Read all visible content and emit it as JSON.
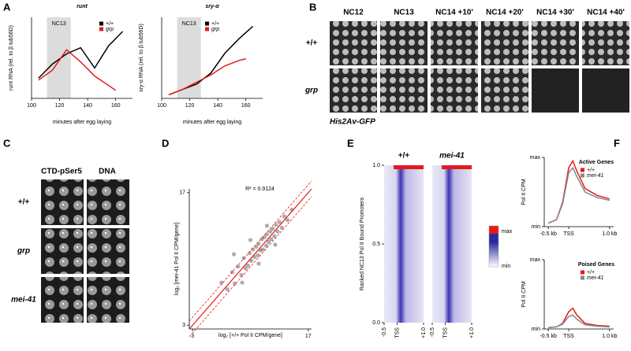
{
  "figure": {
    "panel_labels": [
      "A",
      "B",
      "C",
      "D",
      "E",
      "F"
    ]
  },
  "panel_b": {
    "columns": [
      "NC12",
      "NC13",
      "NC14 +10'",
      "NC14 +20'",
      "NC14 +30'",
      "NC14 +40'"
    ],
    "rows": [
      "+/+",
      "grp"
    ],
    "caption": "His2Av-GFP"
  },
  "panel_c": {
    "columns": [
      "CTD-pSer5",
      "DNA"
    ],
    "rows": [
      "+/+",
      "grp",
      "mei-41"
    ]
  },
  "chart_data": [
    {
      "type": "line",
      "title": "runt",
      "xlabel": "minutes after egg laying",
      "ylabel": "runt RNA (rel. to β tub56D)",
      "xlim": [
        100,
        172
      ],
      "xticks": [
        100,
        120,
        140,
        160
      ],
      "ylim": [
        0,
        0.04
      ],
      "legend": "upper right",
      "highlight": {
        "label": "NC13",
        "range": [
          111,
          128
        ]
      },
      "series": [
        {
          "name": "+/+",
          "color": "#000000",
          "x": [
            105,
            115,
            125,
            135,
            145,
            155,
            165
          ],
          "values": [
            0.01,
            0.017,
            0.022,
            0.025,
            0.015,
            0.026,
            0.033
          ]
        },
        {
          "name": "grp",
          "color": "#e31a1c",
          "x": [
            105,
            115,
            125,
            135,
            145,
            160
          ],
          "values": [
            0.009,
            0.014,
            0.024,
            0.018,
            0.011,
            0.004
          ]
        }
      ]
    },
    {
      "type": "line",
      "title": "sry-α",
      "xlabel": "minutes after egg laying",
      "ylabel": "sry-α RNA (rel. to β tub56D)",
      "xlim": [
        100,
        172
      ],
      "xticks": [
        100,
        120,
        140,
        160
      ],
      "ylim": [
        0,
        0.045
      ],
      "legend": "upper left",
      "highlight": {
        "label": "NC13",
        "range": [
          111,
          128
        ]
      },
      "series": [
        {
          "name": "+/+",
          "color": "#000000",
          "x": [
            105,
            115,
            125,
            135,
            145,
            155,
            165
          ],
          "values": [
            0.002,
            0.005,
            0.008,
            0.014,
            0.025,
            0.033,
            0.04
          ]
        },
        {
          "name": "grp",
          "color": "#e31a1c",
          "x": [
            105,
            115,
            125,
            135,
            145,
            155,
            160
          ],
          "values": [
            0.002,
            0.005,
            0.009,
            0.013,
            0.018,
            0.021,
            0.022
          ]
        }
      ]
    },
    {
      "type": "scatter",
      "annotation": "R² = 0.9124",
      "xlabel": "log₂ [+/+ Pol II CPM/gene]",
      "ylabel": "log₂ [mei-41 Pol II CPM/gene]",
      "xlim": [
        2.6,
        17.4
      ],
      "ylim": [
        2.6,
        17.4
      ],
      "xticks": [
        3,
        17
      ],
      "yticks": [
        3,
        17
      ],
      "color": "#333333",
      "x": [
        6.5,
        7.2,
        7.8,
        8.1,
        8.5,
        8.9,
        9.2,
        9.4,
        9.7,
        9.9,
        10.1,
        10.3,
        10.5,
        10.7,
        10.9,
        11.0,
        11.2,
        11.4,
        11.5,
        11.7,
        11.9,
        12.0,
        12.2,
        12.4,
        12.5,
        12.7,
        12.9,
        13.1,
        13.3,
        13.5,
        13.8,
        14.1,
        14.5,
        15.0,
        8.0,
        9.0,
        10.0,
        11.0,
        12.0,
        13.0
      ],
      "values": [
        7.5,
        6.8,
        8.6,
        7.4,
        9.2,
        8.3,
        10.1,
        9.0,
        9.3,
        10.6,
        9.8,
        11.0,
        10.2,
        11.3,
        10.4,
        11.6,
        10.9,
        12.1,
        11.0,
        12.3,
        11.4,
        12.6,
        11.8,
        12.9,
        12.1,
        13.2,
        12.4,
        13.6,
        12.9,
        13.9,
        13.3,
        14.5,
        14.1,
        15.2,
        10.5,
        7.5,
        12.0,
        9.5,
        13.5,
        11.5
      ]
    },
    {
      "type": "heatmap",
      "ylabel": "Ranked NC13 Pol II Bound Promoters",
      "columns": [
        "+/+",
        "mei-41"
      ],
      "ylim": [
        0,
        1
      ],
      "yticks": [
        {
          "value": 0,
          "label": "0.0"
        },
        {
          "value": 0.5,
          "label": "0.5"
        },
        {
          "value": 1,
          "label": "1.0"
        }
      ],
      "xlim": [
        -0.5,
        1
      ],
      "xticks": [
        {
          "value": -0.5,
          "label": "-0.5"
        },
        {
          "value": 0,
          "label": "TSS"
        },
        {
          "value": 1,
          "label": "+1.0"
        }
      ],
      "colorbar": [
        "max",
        "min"
      ]
    },
    {
      "type": "line",
      "title": "Active Genes",
      "ylabel": "Pol II CPM",
      "legend": "upper right",
      "xlim": [
        -0.6,
        1.1
      ],
      "xticks": [
        {
          "value": -0.5,
          "label": "-0.5 kb"
        },
        {
          "value": 0,
          "label": "TSS"
        },
        {
          "value": 1,
          "label": "1.0 kb"
        }
      ],
      "ylim": [
        0,
        1
      ],
      "yticks": [
        {
          "value": 0,
          "label": "min"
        },
        {
          "value": 1,
          "label": "max"
        }
      ],
      "series": [
        {
          "name": "+/+",
          "color": "#e31a1c",
          "x": [
            -0.5,
            -0.3,
            -0.15,
            0,
            0.1,
            0.2,
            0.4,
            0.7,
            1.0
          ],
          "values": [
            0.05,
            0.1,
            0.35,
            0.85,
            0.95,
            0.8,
            0.55,
            0.45,
            0.4
          ]
        },
        {
          "name": "mei-41",
          "color": "#888888",
          "x": [
            -0.5,
            -0.3,
            -0.15,
            0,
            0.1,
            0.2,
            0.4,
            0.7,
            1.0
          ],
          "values": [
            0.05,
            0.1,
            0.33,
            0.78,
            0.85,
            0.72,
            0.5,
            0.42,
            0.38
          ]
        }
      ]
    },
    {
      "type": "line",
      "title": "Poised Genes",
      "ylabel": "Pol II CPM",
      "legend": "upper right",
      "xlim": [
        -0.6,
        1.1
      ],
      "xticks": [
        {
          "value": -0.5,
          "label": "-0.5 kb"
        },
        {
          "value": 0,
          "label": "TSS"
        },
        {
          "value": 1,
          "label": "1.0 kb"
        }
      ],
      "ylim": [
        0,
        1
      ],
      "yticks": [
        {
          "value": 0,
          "label": "min"
        },
        {
          "value": 1,
          "label": "max"
        }
      ],
      "series": [
        {
          "name": "+/+",
          "color": "#e31a1c",
          "x": [
            -0.5,
            -0.3,
            -0.15,
            0,
            0.1,
            0.2,
            0.4,
            0.7,
            1.0
          ],
          "values": [
            0.02,
            0.03,
            0.08,
            0.25,
            0.3,
            0.2,
            0.08,
            0.05,
            0.04
          ]
        },
        {
          "name": "mei-41",
          "color": "#888888",
          "x": [
            -0.5,
            -0.3,
            -0.15,
            0,
            0.1,
            0.2,
            0.4,
            0.7,
            1.0
          ],
          "values": [
            0.02,
            0.03,
            0.07,
            0.18,
            0.2,
            0.14,
            0.06,
            0.04,
            0.03
          ]
        }
      ]
    }
  ]
}
